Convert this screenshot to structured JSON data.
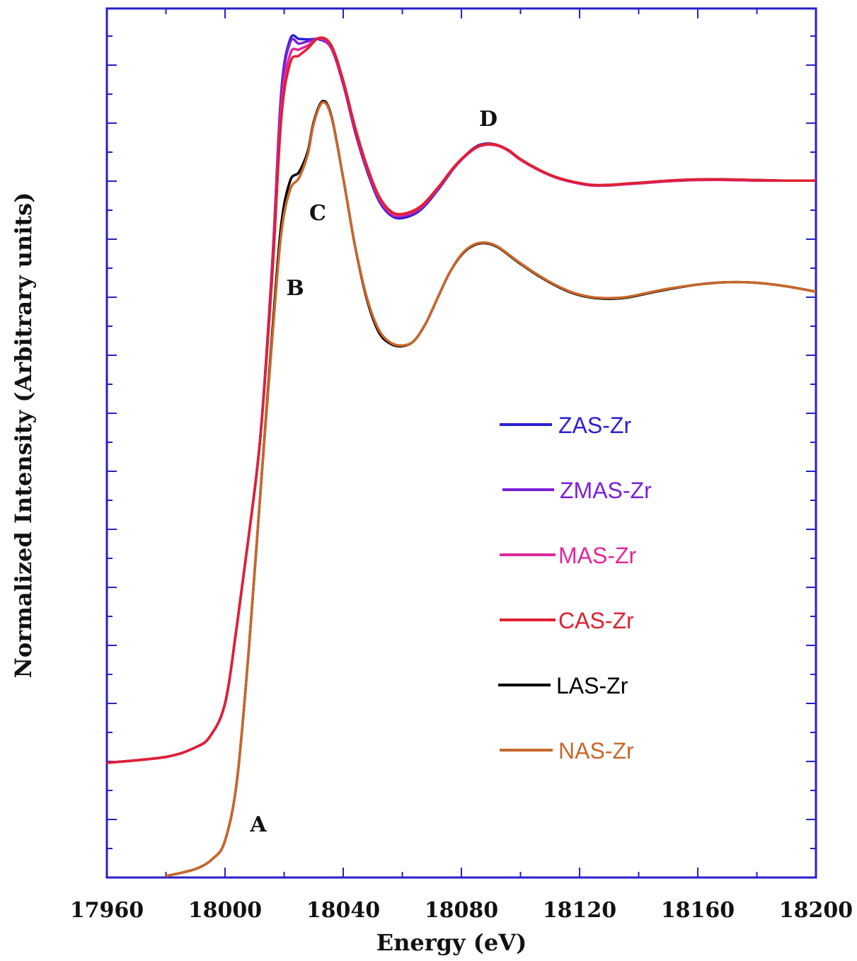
{
  "chart_data": {
    "type": "line",
    "xlabel": "Energy (eV)",
    "ylabel": "Normalized Intensity (Arbitrary units)",
    "xlim": [
      17960,
      18200
    ],
    "ylim": [
      0,
      1.45
    ],
    "x_ticks": [
      17960,
      18000,
      18040,
      18080,
      18120,
      18160,
      18200
    ],
    "y_tick_labels_shown": false,
    "grid": false,
    "frame_color": "#2a1fc8",
    "legend_position": "center-right",
    "annotations": [
      {
        "text": "A",
        "x": 18011,
        "y": 0.09
      },
      {
        "text": "B",
        "x": 18023,
        "y": 1.02
      },
      {
        "text": "C",
        "x": 18031,
        "y": 1.17
      },
      {
        "text": "D",
        "x": 18088,
        "y": 1.4
      }
    ],
    "series": [
      {
        "name": "ZAS-Zr",
        "color": "#2a1fd6",
        "offset": "upper",
        "x": [
          17960,
          17980,
          17990,
          17995,
          18000,
          18004,
          18008,
          18012,
          18016,
          18019,
          18022,
          18025,
          18028,
          18032,
          18036,
          18040,
          18044,
          18048,
          18052,
          18056,
          18060,
          18066,
          18072,
          18078,
          18084,
          18088,
          18092,
          18096,
          18100,
          18106,
          18112,
          18118,
          18124,
          18130,
          18136,
          18142,
          18150,
          18160,
          18170,
          18180,
          18190,
          18200
        ],
        "y": [
          0.2,
          0.21,
          0.226,
          0.245,
          0.3,
          0.43,
          0.58,
          0.75,
          1.04,
          1.325,
          1.415,
          1.416,
          1.415,
          1.415,
          1.4,
          1.34,
          1.26,
          1.195,
          1.145,
          1.12,
          1.115,
          1.128,
          1.162,
          1.202,
          1.232,
          1.24,
          1.238,
          1.228,
          1.213,
          1.196,
          1.183,
          1.175,
          1.17,
          1.17,
          1.173,
          1.175,
          1.178,
          1.18,
          1.18,
          1.179,
          1.178,
          1.178
        ]
      },
      {
        "name": "ZMAS-Zr",
        "color": "#7b1fd8",
        "offset": "upper",
        "x": [
          17960,
          17980,
          17990,
          17995,
          18000,
          18004,
          18008,
          18012,
          18016,
          18019,
          18022,
          18025,
          18028,
          18032,
          18036,
          18040,
          18044,
          18048,
          18052,
          18056,
          18060,
          18066,
          18072,
          18078,
          18084,
          18088,
          18092,
          18096,
          18100,
          18106,
          18112,
          18118,
          18124,
          18130,
          18136,
          18142,
          18150,
          18160,
          18170,
          18180,
          18190,
          18200
        ],
        "y": [
          0.2,
          0.21,
          0.226,
          0.245,
          0.3,
          0.43,
          0.58,
          0.75,
          1.04,
          1.32,
          1.41,
          1.408,
          1.412,
          1.416,
          1.4,
          1.34,
          1.262,
          1.197,
          1.148,
          1.122,
          1.118,
          1.13,
          1.163,
          1.202,
          1.23,
          1.238,
          1.237,
          1.228,
          1.213,
          1.196,
          1.183,
          1.175,
          1.17,
          1.17,
          1.172,
          1.174,
          1.177,
          1.179,
          1.179,
          1.178,
          1.178,
          1.178
        ]
      },
      {
        "name": "MAS-Zr",
        "color": "#e0279a",
        "offset": "upper",
        "x": [
          17960,
          17980,
          17990,
          17995,
          18000,
          18004,
          18008,
          18012,
          18016,
          18019,
          18022,
          18025,
          18028,
          18032,
          18036,
          18040,
          18044,
          18048,
          18052,
          18056,
          18060,
          18066,
          18072,
          18078,
          18084,
          18088,
          18092,
          18096,
          18100,
          18106,
          18112,
          18118,
          18124,
          18130,
          18136,
          18142,
          18150,
          18160,
          18170,
          18180,
          18190,
          18200
        ],
        "y": [
          0.2,
          0.21,
          0.226,
          0.245,
          0.3,
          0.43,
          0.58,
          0.75,
          1.03,
          1.3,
          1.39,
          1.398,
          1.405,
          1.417,
          1.402,
          1.343,
          1.265,
          1.2,
          1.15,
          1.124,
          1.12,
          1.132,
          1.165,
          1.203,
          1.23,
          1.238,
          1.237,
          1.228,
          1.213,
          1.196,
          1.183,
          1.175,
          1.17,
          1.17,
          1.172,
          1.174,
          1.177,
          1.179,
          1.179,
          1.178,
          1.178,
          1.178
        ]
      },
      {
        "name": "CAS-Zr",
        "color": "#e02030",
        "offset": "upper",
        "x": [
          17960,
          17980,
          17990,
          17995,
          18000,
          18004,
          18008,
          18012,
          18016,
          18019,
          18022,
          18025,
          18028,
          18032,
          18036,
          18040,
          18044,
          18048,
          18052,
          18056,
          18060,
          18066,
          18072,
          18078,
          18084,
          18088,
          18092,
          18096,
          18100,
          18106,
          18112,
          18118,
          18124,
          18130,
          18136,
          18142,
          18150,
          18160,
          18170,
          18180,
          18190,
          18200
        ],
        "y": [
          0.2,
          0.21,
          0.226,
          0.245,
          0.3,
          0.43,
          0.58,
          0.75,
          1.02,
          1.28,
          1.375,
          1.388,
          1.4,
          1.418,
          1.405,
          1.346,
          1.268,
          1.203,
          1.153,
          1.127,
          1.122,
          1.134,
          1.166,
          1.204,
          1.231,
          1.239,
          1.238,
          1.229,
          1.214,
          1.197,
          1.184,
          1.176,
          1.171,
          1.171,
          1.173,
          1.175,
          1.178,
          1.18,
          1.18,
          1.179,
          1.178,
          1.178
        ]
      },
      {
        "name": "LAS-Zr",
        "color": "#000000",
        "offset": "lower",
        "x": [
          17980,
          17990,
          17996,
          18000,
          18004,
          18008,
          18012,
          18016,
          18019,
          18022,
          18025,
          18028,
          18030,
          18033,
          18036,
          18040,
          18044,
          18048,
          18052,
          18056,
          18060,
          18064,
          18068,
          18072,
          18076,
          18080,
          18084,
          18088,
          18092,
          18096,
          18100,
          18106,
          18112,
          18118,
          18124,
          18130,
          18136,
          18142,
          18150,
          18160,
          18170,
          18180,
          18190,
          18200
        ],
        "y": [
          0.0,
          0.012,
          0.03,
          0.06,
          0.16,
          0.38,
          0.65,
          0.92,
          1.1,
          1.175,
          1.19,
          1.225,
          1.275,
          1.31,
          1.285,
          1.18,
          1.065,
          0.975,
          0.92,
          0.9,
          0.896,
          0.905,
          0.935,
          0.978,
          1.02,
          1.05,
          1.066,
          1.07,
          1.064,
          1.05,
          1.035,
          1.015,
          0.998,
          0.985,
          0.978,
          0.976,
          0.978,
          0.984,
          0.992,
          1.0,
          1.004,
          1.003,
          0.997,
          0.988
        ]
      },
      {
        "name": "NAS-Zr",
        "color": "#c8672a",
        "offset": "lower",
        "x": [
          17980,
          17990,
          17996,
          18000,
          18004,
          18008,
          18012,
          18016,
          18019,
          18022,
          18025,
          18028,
          18030,
          18033,
          18036,
          18040,
          18044,
          18048,
          18052,
          18056,
          18060,
          18064,
          18068,
          18072,
          18076,
          18080,
          18084,
          18088,
          18092,
          18096,
          18100,
          18106,
          18112,
          18118,
          18124,
          18130,
          18136,
          18142,
          18150,
          18160,
          18170,
          18180,
          18190,
          18200
        ],
        "y": [
          0.0,
          0.012,
          0.03,
          0.06,
          0.16,
          0.38,
          0.65,
          0.91,
          1.085,
          1.16,
          1.18,
          1.22,
          1.272,
          1.308,
          1.283,
          1.18,
          1.066,
          0.978,
          0.924,
          0.902,
          0.897,
          0.905,
          0.935,
          0.978,
          1.02,
          1.051,
          1.067,
          1.071,
          1.065,
          1.051,
          1.036,
          1.016,
          0.999,
          0.986,
          0.979,
          0.977,
          0.979,
          0.985,
          0.993,
          1.0,
          1.004,
          1.003,
          0.997,
          0.988
        ]
      }
    ]
  }
}
